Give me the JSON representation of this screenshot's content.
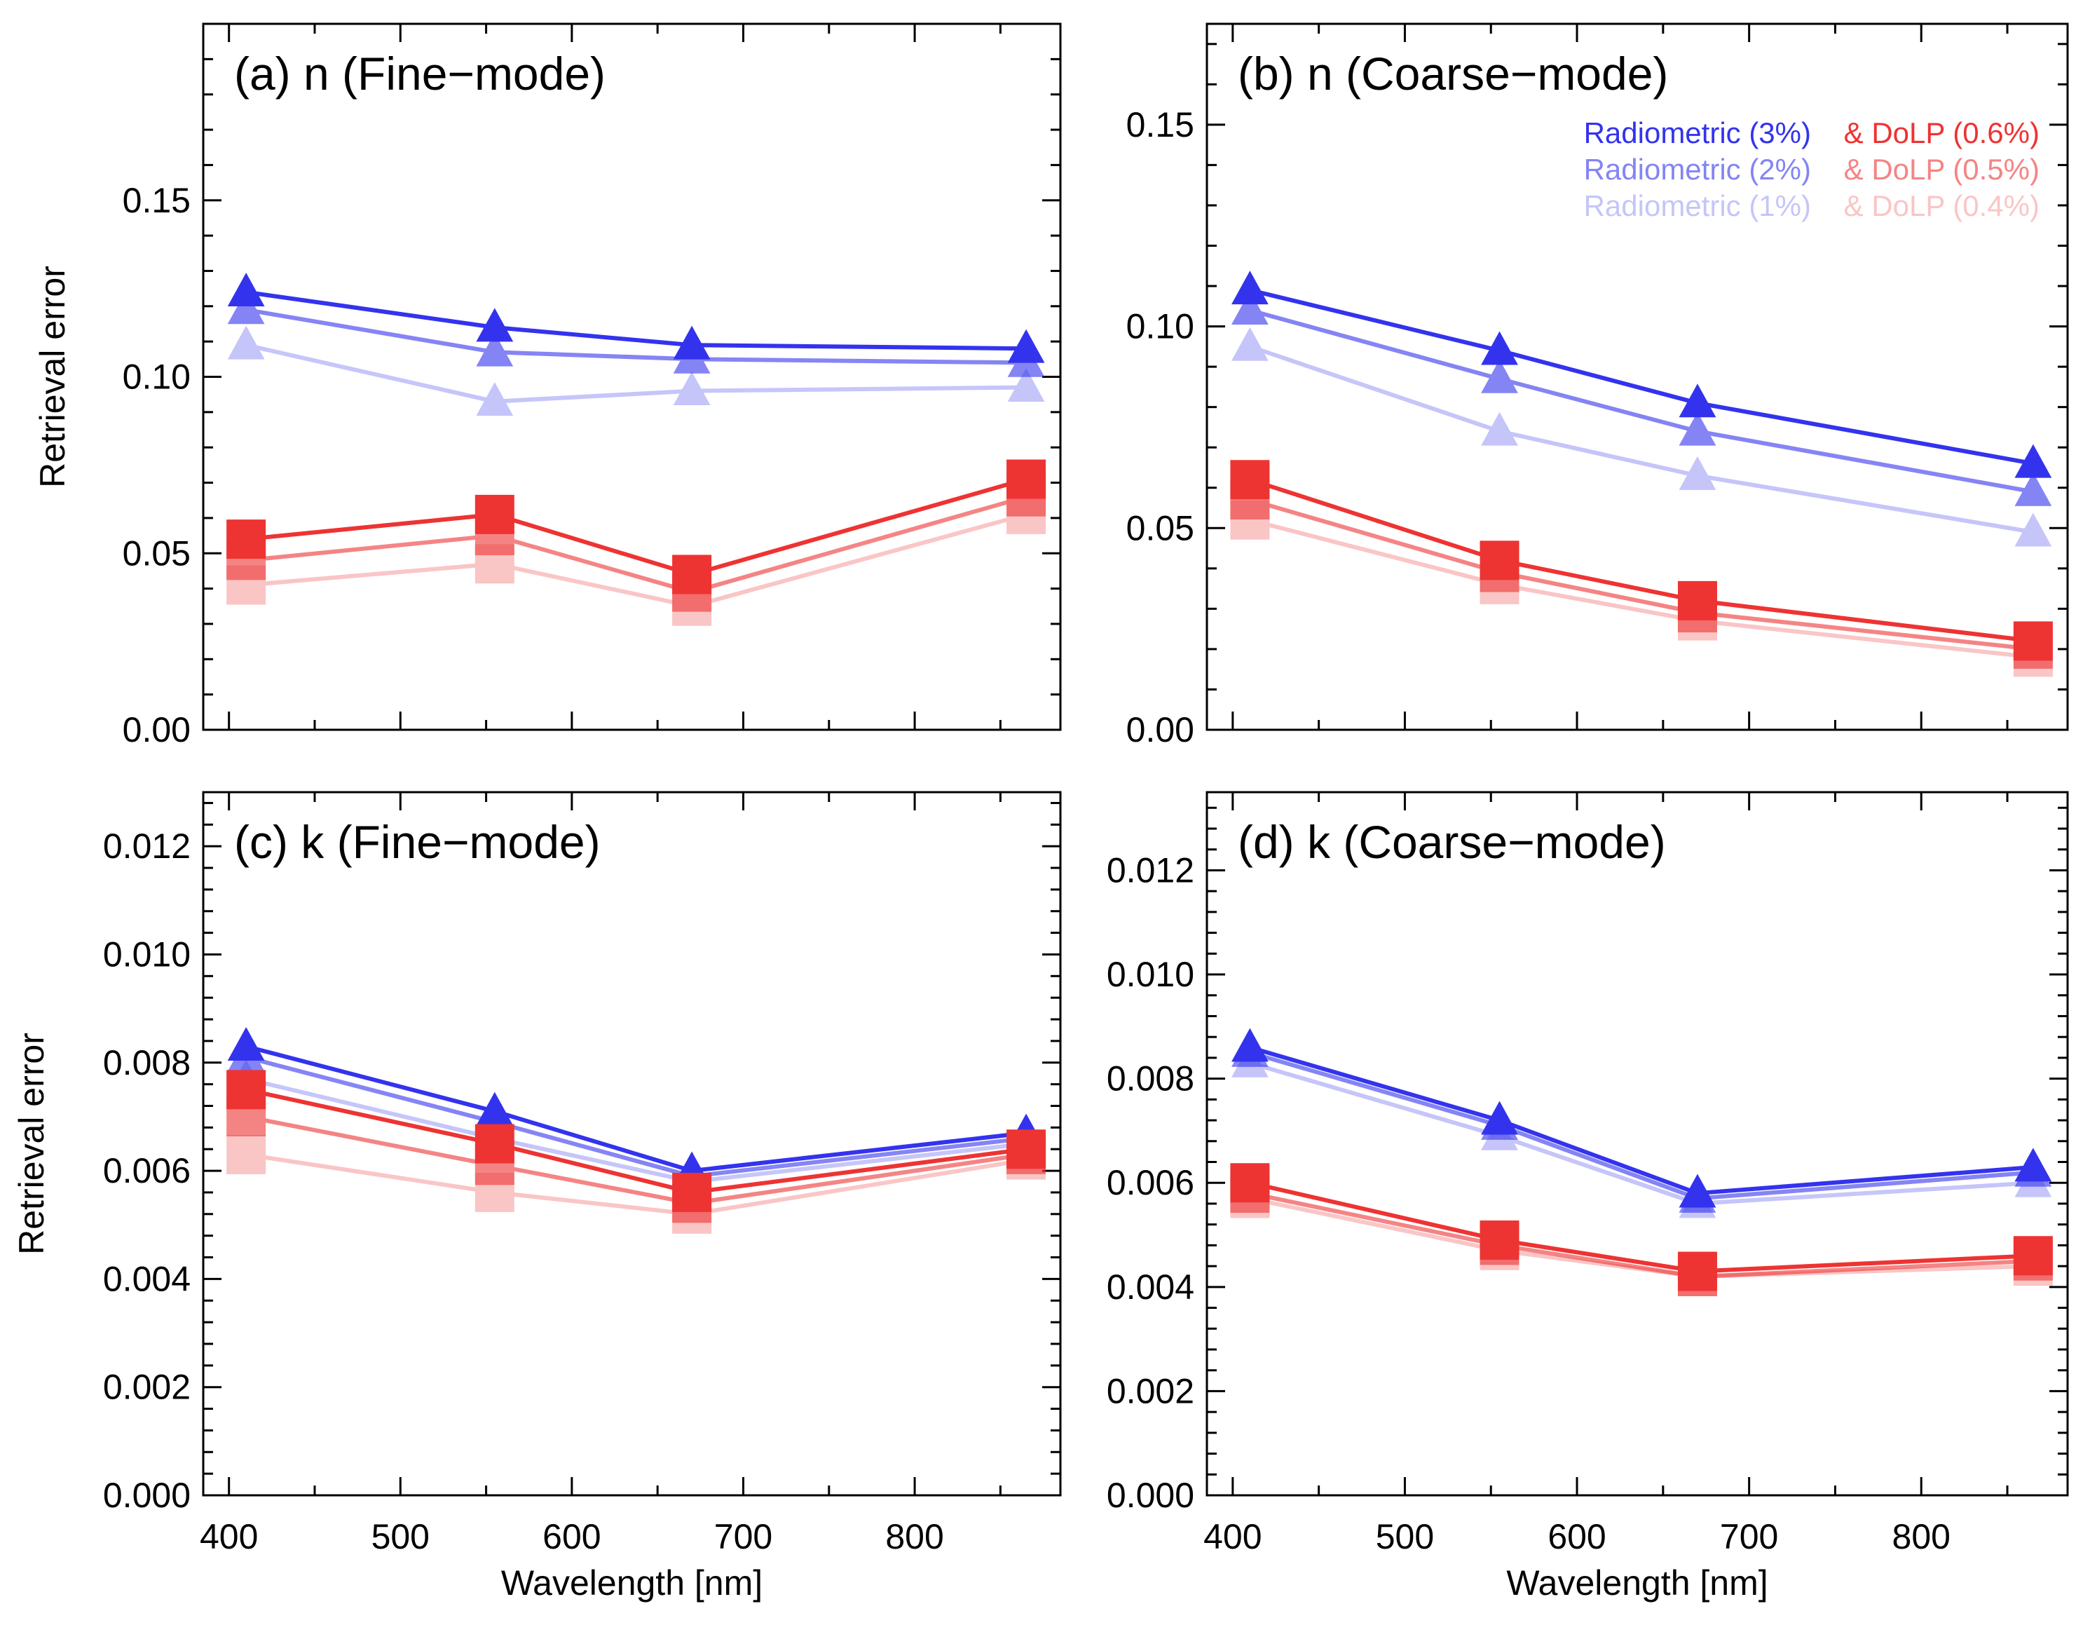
{
  "chart_data": [
    {
      "id": "a",
      "type": "line",
      "title": "(a) n (Fine−mode)",
      "xlabel": "",
      "ylabel": "Retrieval error",
      "xlim": [
        385,
        885
      ],
      "ylim": [
        0,
        0.2
      ],
      "xticks": [
        400,
        500,
        600,
        700,
        800
      ],
      "xtick_labels": [
        "",
        "",
        "",
        "",
        ""
      ],
      "yticks": [
        0,
        0.05,
        0.1,
        0.15
      ],
      "ytick_labels": [
        "0.00",
        "0.05",
        "0.10",
        "0.15"
      ],
      "x": [
        410,
        555,
        670,
        865
      ],
      "series": [
        {
          "name": "Radiometric (3%)",
          "marker": "triangle",
          "color": "#3333ee",
          "opacity": 1.0,
          "values": [
            0.124,
            0.114,
            0.109,
            0.108
          ]
        },
        {
          "name": "Radiometric (2%)",
          "marker": "triangle",
          "color": "#3333ee",
          "opacity": 0.6,
          "values": [
            0.119,
            0.107,
            0.105,
            0.104
          ]
        },
        {
          "name": "Radiometric (1%)",
          "marker": "triangle",
          "color": "#3333ee",
          "opacity": 0.28,
          "values": [
            0.109,
            0.093,
            0.096,
            0.097
          ]
        },
        {
          "name": "& DoLP (0.6%)",
          "marker": "square",
          "color": "#ee3333",
          "opacity": 1.0,
          "values": [
            0.054,
            0.061,
            0.044,
            0.071
          ]
        },
        {
          "name": "& DoLP (0.5%)",
          "marker": "square",
          "color": "#ee3333",
          "opacity": 0.6,
          "values": [
            0.048,
            0.055,
            0.039,
            0.066
          ]
        },
        {
          "name": "& DoLP (0.4%)",
          "marker": "square",
          "color": "#ee3333",
          "opacity": 0.28,
          "values": [
            0.041,
            0.047,
            0.035,
            0.061
          ]
        }
      ]
    },
    {
      "id": "b",
      "type": "line",
      "title": "(b) n (Coarse−mode)",
      "xlabel": "",
      "ylabel": "",
      "xlim": [
        385,
        885
      ],
      "ylim": [
        0,
        0.175
      ],
      "xticks": [
        400,
        500,
        600,
        700,
        800
      ],
      "xtick_labels": [
        "",
        "",
        "",
        "",
        ""
      ],
      "yticks": [
        0,
        0.05,
        0.1,
        0.15
      ],
      "ytick_labels": [
        "0.00",
        "0.05",
        "0.10",
        "0.15"
      ],
      "x": [
        410,
        555,
        670,
        865
      ],
      "series": [
        {
          "name": "Radiometric (3%)",
          "marker": "triangle",
          "color": "#3333ee",
          "opacity": 1.0,
          "values": [
            0.109,
            0.094,
            0.081,
            0.066
          ]
        },
        {
          "name": "Radiometric (2%)",
          "marker": "triangle",
          "color": "#3333ee",
          "opacity": 0.6,
          "values": [
            0.104,
            0.087,
            0.074,
            0.059
          ]
        },
        {
          "name": "Radiometric (1%)",
          "marker": "triangle",
          "color": "#3333ee",
          "opacity": 0.28,
          "values": [
            0.095,
            0.074,
            0.063,
            0.049
          ]
        },
        {
          "name": "& DoLP (0.6%)",
          "marker": "square",
          "color": "#ee3333",
          "opacity": 1.0,
          "values": [
            0.062,
            0.042,
            0.032,
            0.022
          ]
        },
        {
          "name": "& DoLP (0.5%)",
          "marker": "square",
          "color": "#ee3333",
          "opacity": 0.6,
          "values": [
            0.057,
            0.039,
            0.029,
            0.02
          ]
        },
        {
          "name": "& DoLP (0.4%)",
          "marker": "square",
          "color": "#ee3333",
          "opacity": 0.28,
          "values": [
            0.052,
            0.036,
            0.027,
            0.018
          ]
        }
      ],
      "legend": {
        "placement": "top-right",
        "entries": [
          {
            "text": "Radiometric (3%)",
            "color": "#3333ee",
            "opacity": 1.0
          },
          {
            "text": "& DoLP (0.6%)",
            "color": "#ee3333",
            "opacity": 1.0
          },
          {
            "text": "Radiometric (2%)",
            "color": "#3333ee",
            "opacity": 0.6
          },
          {
            "text": "& DoLP (0.5%)",
            "color": "#ee3333",
            "opacity": 0.6
          },
          {
            "text": "Radiometric (1%)",
            "color": "#3333ee",
            "opacity": 0.28
          },
          {
            "text": "& DoLP (0.4%)",
            "color": "#ee3333",
            "opacity": 0.28
          }
        ]
      }
    },
    {
      "id": "c",
      "type": "line",
      "title": "(c) k (Fine−mode)",
      "xlabel": "Wavelength [nm]",
      "ylabel": "Retrieval error",
      "xlim": [
        385,
        885
      ],
      "ylim": [
        0,
        0.013
      ],
      "xticks": [
        400,
        500,
        600,
        700,
        800
      ],
      "xtick_labels": [
        "400",
        "500",
        "600",
        "700",
        "800"
      ],
      "yticks": [
        0,
        0.002,
        0.004,
        0.006,
        0.008,
        0.01,
        0.012
      ],
      "ytick_labels": [
        "0.000",
        "0.002",
        "0.004",
        "0.006",
        "0.008",
        "0.010",
        "0.012"
      ],
      "x": [
        410,
        555,
        670,
        865
      ],
      "series": [
        {
          "name": "Radiometric (3%)",
          "marker": "triangle",
          "color": "#3333ee",
          "opacity": 1.0,
          "values": [
            0.0083,
            0.0071,
            0.006,
            0.0067
          ]
        },
        {
          "name": "Radiometric (2%)",
          "marker": "triangle",
          "color": "#3333ee",
          "opacity": 0.6,
          "values": [
            0.0081,
            0.0069,
            0.0059,
            0.0066
          ]
        },
        {
          "name": "Radiometric (1%)",
          "marker": "triangle",
          "color": "#3333ee",
          "opacity": 0.28,
          "values": [
            0.0077,
            0.0066,
            0.0058,
            0.0065
          ]
        },
        {
          "name": "& DoLP (0.6%)",
          "marker": "square",
          "color": "#ee3333",
          "opacity": 1.0,
          "values": [
            0.0075,
            0.0065,
            0.0056,
            0.0064
          ]
        },
        {
          "name": "& DoLP (0.5%)",
          "marker": "square",
          "color": "#ee3333",
          "opacity": 0.6,
          "values": [
            0.007,
            0.0061,
            0.0054,
            0.0063
          ]
        },
        {
          "name": "& DoLP (0.4%)",
          "marker": "square",
          "color": "#ee3333",
          "opacity": 0.28,
          "values": [
            0.0063,
            0.0056,
            0.0052,
            0.0062
          ]
        }
      ]
    },
    {
      "id": "d",
      "type": "line",
      "title": "(d) k (Coarse−mode)",
      "xlabel": "Wavelength [nm]",
      "ylabel": "",
      "xlim": [
        385,
        885
      ],
      "ylim": [
        0,
        0.0135
      ],
      "xticks": [
        400,
        500,
        600,
        700,
        800
      ],
      "xtick_labels": [
        "400",
        "500",
        "600",
        "700",
        "800"
      ],
      "yticks": [
        0,
        0.002,
        0.004,
        0.006,
        0.008,
        0.01,
        0.012
      ],
      "ytick_labels": [
        "0.000",
        "0.002",
        "0.004",
        "0.006",
        "0.008",
        "0.010",
        "0.012"
      ],
      "x": [
        410,
        555,
        670,
        865
      ],
      "series": [
        {
          "name": "Radiometric (3%)",
          "marker": "triangle",
          "color": "#3333ee",
          "opacity": 1.0,
          "values": [
            0.0086,
            0.0072,
            0.0058,
            0.0063
          ]
        },
        {
          "name": "Radiometric (2%)",
          "marker": "triangle",
          "color": "#3333ee",
          "opacity": 0.6,
          "values": [
            0.0085,
            0.0071,
            0.0057,
            0.0062
          ]
        },
        {
          "name": "Radiometric (1%)",
          "marker": "triangle",
          "color": "#3333ee",
          "opacity": 0.28,
          "values": [
            0.0083,
            0.0069,
            0.0056,
            0.006
          ]
        },
        {
          "name": "& DoLP (0.6%)",
          "marker": "square",
          "color": "#ee3333",
          "opacity": 1.0,
          "values": [
            0.006,
            0.0049,
            0.0043,
            0.0046
          ]
        },
        {
          "name": "& DoLP (0.5%)",
          "marker": "square",
          "color": "#ee3333",
          "opacity": 0.6,
          "values": [
            0.0058,
            0.0048,
            0.0042,
            0.0045
          ]
        },
        {
          "name": "& DoLP (0.4%)",
          "marker": "square",
          "color": "#ee3333",
          "opacity": 0.28,
          "values": [
            0.0057,
            0.0047,
            0.0042,
            0.0044
          ]
        }
      ]
    }
  ]
}
